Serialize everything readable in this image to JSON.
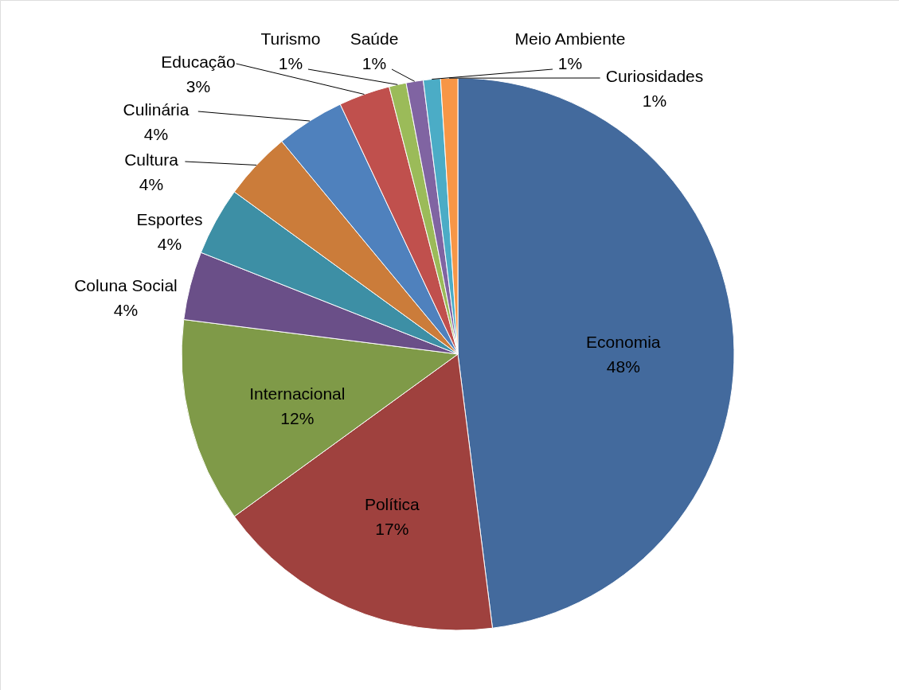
{
  "chart_data": {
    "type": "pie",
    "categories": [
      "Economia",
      "Política",
      "Internacional",
      "Coluna Social",
      "Esportes",
      "Cultura",
      "Culinária",
      "Educação",
      "Turismo",
      "Saúde",
      "Meio Ambiente",
      "Curiosidades"
    ],
    "values": [
      48,
      17,
      12,
      4,
      4,
      4,
      4,
      3,
      1,
      1,
      1,
      1
    ],
    "value_labels": [
      "48%",
      "17%",
      "12%",
      "4%",
      "4%",
      "4%",
      "4%",
      "3%",
      "1%",
      "1%",
      "1%",
      "1%"
    ],
    "colors": [
      "#436a9d",
      "#9f413e",
      "#7f9a48",
      "#6a4f88",
      "#3d8fa5",
      "#cb7c3a",
      "#4f81bd",
      "#c0504d",
      "#9bbb59",
      "#8064a2",
      "#4bacc6",
      "#f79646"
    ]
  }
}
